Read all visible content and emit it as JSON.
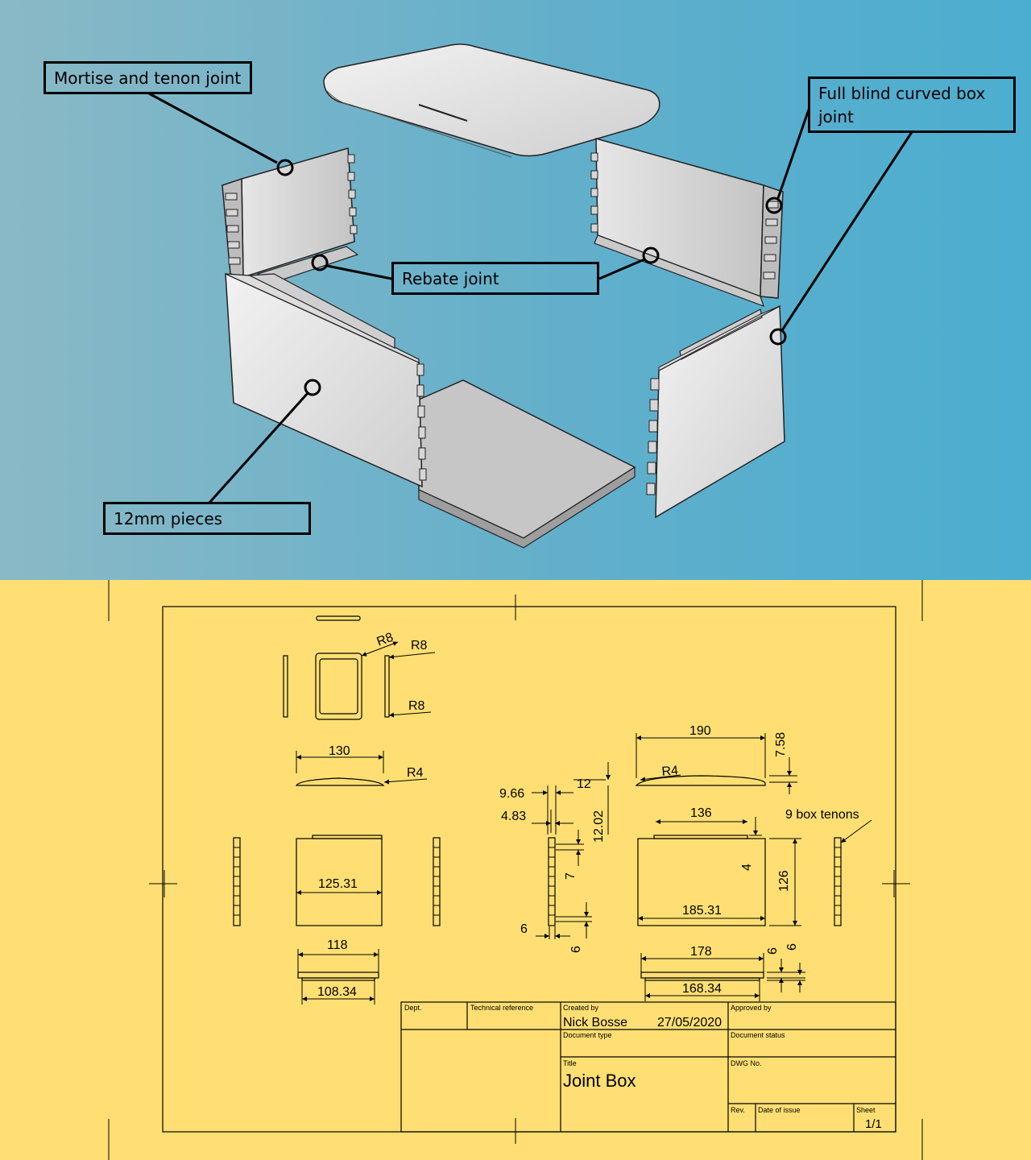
{
  "callouts": {
    "mortise": "Mortise and tenon joint",
    "curved": "Full blind curved box joint",
    "rebate": "Rebate joint",
    "pieces": "12mm pieces"
  },
  "dimensions": {
    "r8_a": "R8",
    "r8_b": "R8",
    "r8_c": "R8",
    "d130": "130",
    "r4_a": "R4",
    "d190": "190",
    "d758": "7.58",
    "r4_b": "R4",
    "d966": "9.66",
    "d12": "12",
    "d483": "4.83",
    "d1202": "12.02",
    "d136": "136",
    "box_tenons": "9 box tenons",
    "d7": "7",
    "d4": "4",
    "d126": "126",
    "d12531": "125.31",
    "d18531": "185.31",
    "d6a": "6",
    "d6b": "6",
    "d118": "118",
    "d10834": "108.34",
    "d178": "178",
    "d6c": "6",
    "d6d": "6",
    "d16834": "168.34"
  },
  "title_block": {
    "dept_label": "Dept.",
    "techref_label": "Technical reference",
    "created_label": "Created by",
    "created_name": "Nick Bosse",
    "created_date": "27/05/2020",
    "approved_label": "Approved by",
    "doctype_label": "Document type",
    "docstatus_label": "Document status",
    "title_label": "Title",
    "title": "Joint Box",
    "dwg_label": "DWG No.",
    "rev_label": "Rev.",
    "issue_label": "Date of issue",
    "sheet_label": "Sheet",
    "sheet": "1/1"
  }
}
